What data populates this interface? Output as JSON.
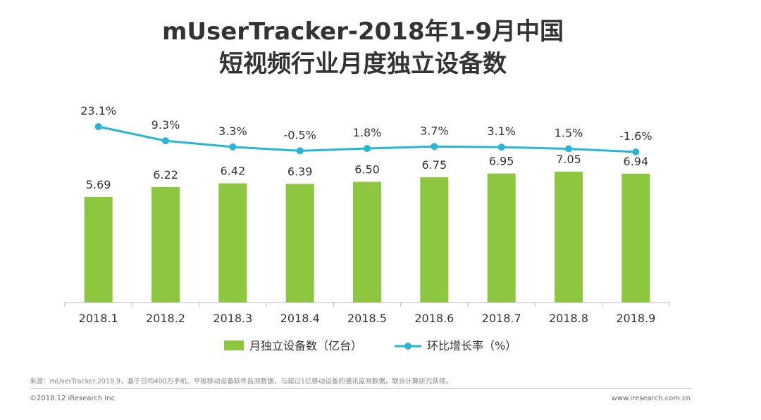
{
  "title_line1": "mUserTracker-2018年1-9月中国",
  "title_line2": "短视频行业月度独立设备数",
  "chart_data": {
    "type": "bar",
    "categories": [
      "2018.1",
      "2018.2",
      "2018.3",
      "2018.4",
      "2018.5",
      "2018.6",
      "2018.7",
      "2018.8",
      "2018.9"
    ],
    "series": [
      {
        "name": "月独立设备数（亿台）",
        "type": "bar",
        "values": [
          5.69,
          6.22,
          6.42,
          6.39,
          6.5,
          6.75,
          6.95,
          7.05,
          6.94
        ],
        "labels": [
          "5.69",
          "6.22",
          "6.42",
          "6.39",
          "6.50",
          "6.75",
          "6.95",
          "7.05",
          "6.94"
        ],
        "color": "#8DC63F"
      },
      {
        "name": "环比增长率（%）",
        "type": "line",
        "values": [
          23.1,
          9.3,
          3.3,
          -0.5,
          1.8,
          3.7,
          3.1,
          1.5,
          -1.6
        ],
        "labels": [
          "23.1%",
          "9.3%",
          "3.3%",
          "-0.5%",
          "1.8%",
          "3.7%",
          "3.1%",
          "1.5%",
          "-1.6%"
        ],
        "color": "#29B6D6"
      }
    ],
    "legend_position": "bottom",
    "grid": false
  },
  "footer": {
    "source": "来源：mUserTracker.2018.9，基于日均400万手机、平板移动设备软件监测数据，与超过1亿移动设备的通讯监测数据，联合计算研究获得。",
    "copyright": "©2018.12 iResearch Inc",
    "website": "www.iresearch.com.cn"
  }
}
